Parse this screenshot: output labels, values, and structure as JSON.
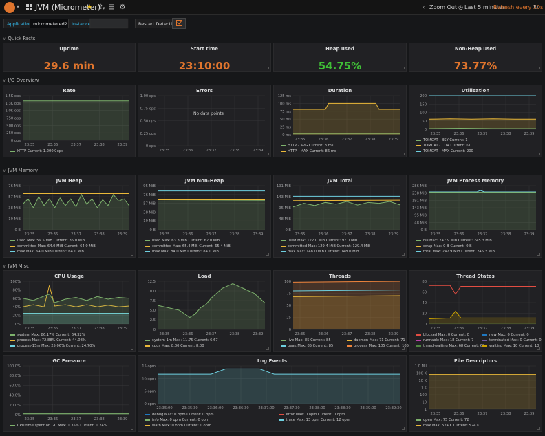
{
  "navbar": {
    "title": "JVM (Micrometer)",
    "zoom_out": "Zoom Out",
    "time_range": "Last 5 minutes",
    "refresh_every": "Refresh every 30s"
  },
  "vars": {
    "application_label": "Application",
    "application_value": "micrometered2",
    "instance_label": "Instance",
    "restart_label": "Restart Detection"
  },
  "rows": {
    "quick_facts": "Quick Facts",
    "io_overview": "I/O Overview",
    "jvm_memory": "JVM Memory",
    "jvm_misc": "JVM Misc"
  },
  "stats": [
    {
      "title": "Uptime",
      "value": "29.6 min",
      "color": "#e0752d"
    },
    {
      "title": "Start time",
      "value": "23:10:00",
      "color": "#e0752d"
    },
    {
      "title": "Heap used",
      "value": "54.75%",
      "color": "#3fbf36"
    },
    {
      "title": "Non-Heap used",
      "value": "73.77%",
      "color": "#e0752d"
    }
  ],
  "panel_titles": {
    "rate": "Rate",
    "errors": "Errors",
    "duration": "Duration",
    "utilisation": "Utilisation",
    "jvm_heap": "JVM Heap",
    "jvm_nonheap": "JVM Non-Heap",
    "jvm_total": "JVM Total",
    "jvm_process_memory": "JVM Process Memory",
    "cpu_usage": "CPU Usage",
    "load": "Load",
    "threads": "Threads",
    "thread_states": "Thread States",
    "gc_pressure": "GC Pressure",
    "log_events": "Log Events",
    "file_descriptors": "File Descriptors"
  },
  "no_data": "No data points",
  "colors": {
    "green": "#7eb26d",
    "yellow": "#eab839",
    "cyan": "#6ed0e0",
    "orange": "#ef843c",
    "red": "#e24d42",
    "blue": "#1f78c1",
    "purple": "#ba43a9",
    "dark_green": "#508642",
    "light_yellow": "#cca300",
    "teal": "#447ebc",
    "olive": "#c15c17"
  },
  "charts": [
    {
      "id": "rate",
      "yticks": [
        "1.5K ops",
        "1.3K ops",
        "1.0K ops",
        "750 ops",
        "500 ops",
        "250 ops",
        "0 ops"
      ],
      "xticks": [
        "23:35",
        "23:36",
        "23:37",
        "23:38",
        "23:39"
      ],
      "legend": [
        [
          "HTTP  Current: 1.200K ops",
          "#7eb26d"
        ]
      ]
    },
    {
      "id": "errors",
      "yticks": [
        "1.00 ops",
        "0.75 ops",
        "0.50 ops",
        "0.25 ops",
        "0 ops"
      ],
      "xticks": [
        "23:35",
        "23:36",
        "23:37",
        "23:38",
        "23:39"
      ],
      "legend": []
    },
    {
      "id": "duration",
      "yticks": [
        "125 ms",
        "100 ms",
        "75 ms",
        "50 ms",
        "25 ms",
        "0 ms"
      ],
      "xticks": [
        "23:35",
        "23:36",
        "23:37",
        "23:38",
        "23:39"
      ],
      "legend": [
        [
          "HTTP - AVG  Current: 3 ms",
          "#7eb26d"
        ],
        [
          "HTTP - MAX  Current: 86 ms",
          "#eab839"
        ]
      ]
    },
    {
      "id": "utilisation",
      "yticks": [
        "200",
        "150",
        "100",
        "50",
        "0"
      ],
      "xticks": [
        "23:35",
        "23:36",
        "23:37",
        "23:38",
        "23:39"
      ],
      "legend": [
        [
          "TOMCAT - BSY  Current: 1",
          "#7eb26d"
        ],
        [
          "TOMCAT - CUR  Current: 61",
          "#eab839"
        ],
        [
          "TOMCAT - MAX  Current: 200",
          "#6ed0e0"
        ]
      ]
    },
    {
      "id": "jvm_heap",
      "yticks": [
        "76 MiB",
        "57 MiB",
        "38 MiB",
        "19 MiB",
        "0 B"
      ],
      "xticks": [
        "23:35",
        "23:36",
        "23:37",
        "23:38",
        "23:39"
      ],
      "legend": [
        [
          "used  Max: 59.5 MiB  Current: 35.0 MiB",
          "#7eb26d"
        ],
        [
          "committed  Max: 64.0 MiB  Current: 64.0 MiB",
          "#eab839"
        ],
        [
          "max  Max: 64.0 MiB  Current: 64.0 MiB",
          "#6ed0e0"
        ]
      ]
    },
    {
      "id": "jvm_nonheap",
      "yticks": [
        "95 MiB",
        "76 MiB",
        "57 MiB",
        "38 MiB",
        "19 MiB",
        "0 B"
      ],
      "xticks": [
        "23:35",
        "23:36",
        "23:37",
        "23:38",
        "23:39"
      ],
      "legend": [
        [
          "used  Max: 63.3 MiB  Current: 62.0 MiB",
          "#7eb26d"
        ],
        [
          "committed  Max: 65.4 MiB  Current: 65.4 MiB",
          "#eab839"
        ],
        [
          "max  Max: 84.0 MiB  Current: 84.0 MiB",
          "#6ed0e0"
        ]
      ]
    },
    {
      "id": "jvm_total",
      "yticks": [
        "191 MiB",
        "143 MiB",
        "95 MiB",
        "48 MiB",
        "0 B"
      ],
      "xticks": [
        "23:35",
        "23:36",
        "23:37",
        "23:38",
        "23:39"
      ],
      "legend": [
        [
          "used  Max: 122.0 MiB  Current: 97.0 MiB",
          "#7eb26d"
        ],
        [
          "committed  Max: 129.4 MiB  Current: 129.4 MiB",
          "#eab839"
        ],
        [
          "max  Max: 148.0 MiB  Current: 148.0 MiB",
          "#6ed0e0"
        ]
      ]
    },
    {
      "id": "jvm_process_memory",
      "yticks": [
        "286 MiB",
        "238 MiB",
        "191 MiB",
        "143 MiB",
        "95 MiB",
        "48 MiB",
        "0 B"
      ],
      "xticks": [
        "23:35",
        "23:36",
        "23:37",
        "23:38",
        "23:39"
      ],
      "legend": [
        [
          "rss  Max: 247.9 MiB  Current: 245.3 MiB",
          "#7eb26d"
        ],
        [
          "swap  Max: 0 B  Current: 0 B",
          "#eab839"
        ],
        [
          "total  Max: 247.9 MiB  Current: 245.3 MiB",
          "#6ed0e0"
        ]
      ]
    },
    {
      "id": "cpu_usage",
      "yticks": [
        "100%",
        "80%",
        "60%",
        "40%",
        "20%",
        "0%"
      ],
      "xticks": [
        "23:35",
        "23:36",
        "23:37",
        "23:38",
        "23:39"
      ],
      "legend": [
        [
          "system  Max: 86.17%  Current: 64.32%",
          "#7eb26d"
        ],
        [
          "process  Max: 72.88%  Current: 44.08%",
          "#eab839"
        ],
        [
          "process-15m  Max: 25.06%  Current: 24.70%",
          "#6ed0e0"
        ]
      ]
    },
    {
      "id": "load",
      "yticks": [
        "12.5",
        "10.0",
        "7.5",
        "5.0",
        "2.5",
        "0"
      ],
      "xticks": [
        "23:35",
        "23:36",
        "23:37",
        "23:38",
        "23:39"
      ],
      "legend": [
        [
          "system-1m  Max: 11.75  Current: 6.67",
          "#7eb26d"
        ],
        [
          "cpus  Max: 8.00  Current: 8.00",
          "#eab839"
        ]
      ]
    },
    {
      "id": "threads",
      "yticks": [
        "100",
        "75",
        "50",
        "25",
        "0"
      ],
      "xticks": [
        "23:35",
        "23:36",
        "23:37",
        "23:38",
        "23:39"
      ],
      "legend": [
        [
          "live  Max: 85  Current: 85",
          "#7eb26d"
        ],
        [
          "daemon  Max: 71  Current: 71",
          "#eab839"
        ],
        [
          "peak  Max: 85  Current: 85",
          "#6ed0e0"
        ],
        [
          "process  Max: 105  Current: 105",
          "#ef843c"
        ]
      ]
    },
    {
      "id": "thread_states",
      "yticks": [
        "80",
        "60",
        "40",
        "20",
        "0"
      ],
      "xticks": [
        "23:35",
        "23:36",
        "23:37",
        "23:38",
        "23:39"
      ],
      "legend": [
        [
          "blocked  Max: 0  Current: 0",
          "#e24d42"
        ],
        [
          "new  Max: 0  Current: 0",
          "#1f78c1"
        ],
        [
          "runnable  Max: 18  Current: 7",
          "#ba43a9"
        ],
        [
          "terminated  Max: 0  Current: 0",
          "#705da0"
        ],
        [
          "timed-waiting  Max: 68  Current: 68",
          "#508642"
        ],
        [
          "waiting  Max: 10  Current: 10",
          "#cca300"
        ]
      ]
    },
    {
      "id": "gc_pressure",
      "yticks": [
        "100.0%",
        "80.0%",
        "60.0%",
        "40.0%",
        "20.0%",
        "0%"
      ],
      "xticks": [
        "23:35",
        "23:36",
        "23:37",
        "23:38",
        "23:39"
      ],
      "legend": [
        [
          "CPU time spent on GC  Max: 1.35%  Current: 1.24%",
          "#7eb26d"
        ]
      ]
    },
    {
      "id": "log_events",
      "yticks": [
        "15 opm",
        "10 opm",
        "5 opm",
        "0 opm"
      ],
      "xticks": [
        "23:35:00",
        "23:35:30",
        "23:36:00",
        "23:36:30",
        "23:37:00",
        "23:37:30",
        "23:38:00",
        "23:38:30",
        "23:39:00",
        "23:39:30"
      ],
      "legend": [
        [
          "debug  Max: 0 opm  Current: 0 opm",
          "#1f78c1"
        ],
        [
          "error  Max: 0 opm  Current: 0 opm",
          "#e24d42"
        ],
        [
          "info  Max: 0 opm  Current: 0 opm",
          "#7eb26d"
        ],
        [
          "trace  Max: 13 opm  Current: 12 opm",
          "#6ed0e0"
        ],
        [
          "warn  Max: 0 opm  Current: 0 opm",
          "#eab839"
        ]
      ]
    },
    {
      "id": "file_descriptors",
      "yticks": [
        "1.0 Mil",
        "100 K",
        "10 K",
        "1 K",
        "100",
        "10",
        "1"
      ],
      "xticks": [
        "23:35",
        "23:36",
        "23:37",
        "23:38",
        "23:39"
      ],
      "legend": [
        [
          "open  Max: 75  Current: 72",
          "#7eb26d"
        ],
        [
          "max  Max: 524 K  Current: 524 K",
          "#eab839"
        ]
      ]
    }
  ]
}
